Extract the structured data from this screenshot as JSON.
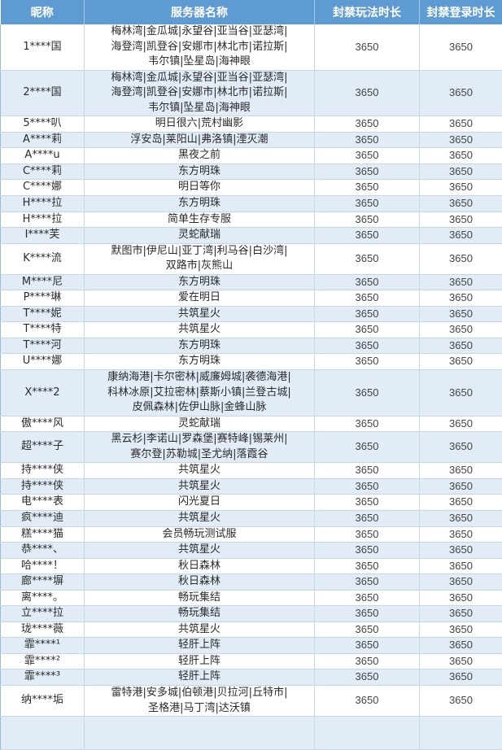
{
  "table": {
    "headers": [
      "昵称",
      "服务器名称",
      "封禁玩法时长",
      "封禁登录时长"
    ],
    "rows": [
      {
        "name": "1****国",
        "server": "梅林湾|金瓜城|永望谷|亚当谷|亚瑟湾|\n海登湾|凯登谷|安娜市|林北市|诺拉斯|\n韦尔镇|坠星岛|海神眼",
        "play_ban": "3650",
        "login_ban": "3650"
      },
      {
        "name": "2****国",
        "server": "梅林湾|金瓜城|永望谷|亚当谷|亚瑟湾|\n海登湾|凯登谷|安娜市|林北市|诺拉斯|\n韦尔镇|坠星岛|海神眼",
        "play_ban": "3650",
        "login_ban": "3650"
      },
      {
        "name": "5****叭",
        "server": "明日很六|荒村幽影",
        "play_ban": "3650",
        "login_ban": "3650"
      },
      {
        "name": "A****莉",
        "server": "浮安岛|莱阳山|弗洛镇|湮灭潮",
        "play_ban": "3650",
        "login_ban": "3650"
      },
      {
        "name": "A****u",
        "server": "黑夜之前",
        "play_ban": "3650",
        "login_ban": "3650"
      },
      {
        "name": "C****莉",
        "server": "东方明珠",
        "play_ban": "3650",
        "login_ban": "3650"
      },
      {
        "name": "C****娜",
        "server": "明日等你",
        "play_ban": "3650",
        "login_ban": "3650"
      },
      {
        "name": "H****拉",
        "server": "东方明珠",
        "play_ban": "3650",
        "login_ban": "3650"
      },
      {
        "name": "H****拉",
        "server": "简单生存专服",
        "play_ban": "3650",
        "login_ban": "3650"
      },
      {
        "name": "I****芙",
        "server": "灵蛇献瑞",
        "play_ban": "3650",
        "login_ban": "3650"
      },
      {
        "name": "K****流",
        "server": "默图市|伊尼山|亚丁湾|利马谷|白沙湾|\n双路市|灰熊山",
        "play_ban": "3650",
        "login_ban": "3650"
      },
      {
        "name": "M****尼",
        "server": "东方明珠",
        "play_ban": "3650",
        "login_ban": "3650"
      },
      {
        "name": "P****琳",
        "server": "爱在明日",
        "play_ban": "3650",
        "login_ban": "3650"
      },
      {
        "name": "T****妮",
        "server": "共筑星火",
        "play_ban": "3650",
        "login_ban": "3650"
      },
      {
        "name": "T****特",
        "server": "共筑星火",
        "play_ban": "3650",
        "login_ban": "3650"
      },
      {
        "name": "T****河",
        "server": "东方明珠",
        "play_ban": "3650",
        "login_ban": "3650"
      },
      {
        "name": "U****娜",
        "server": "东方明珠",
        "play_ban": "3650",
        "login_ban": "3650"
      },
      {
        "name": "X****2",
        "server": "康纳海港|卡尔密林|威廉姆城|袭德海港|\n科林冰原|艾拉密林|蔡斯小镇|兰登古城|\n皮佩森林|佐伊山脉|金蜂山脉",
        "play_ban": "3650",
        "login_ban": "3650"
      },
      {
        "name": "傲****风",
        "server": "灵蛇献瑞",
        "play_ban": "3650",
        "login_ban": "3650"
      },
      {
        "name": "超****子",
        "server": "黑云杉|李诺山|罗森堡|赛特峰|锡莱州|\n赛尔登|苏勒城|圣尤纳|落霞谷",
        "play_ban": "3650",
        "login_ban": "3650"
      },
      {
        "name": "持****侠",
        "server": "共筑星火",
        "play_ban": "3650",
        "login_ban": "3650"
      },
      {
        "name": "持****侠",
        "server": "共筑星火",
        "play_ban": "3650",
        "login_ban": "3650"
      },
      {
        "name": "电****表",
        "server": "闪光夏日",
        "play_ban": "3650",
        "login_ban": "3650"
      },
      {
        "name": "疯****迪",
        "server": "共筑星火",
        "play_ban": "3650",
        "login_ban": "3650"
      },
      {
        "name": "糕****猫",
        "server": "会员畅玩测试服",
        "play_ban": "3650",
        "login_ban": "3650"
      },
      {
        "name": "恭****、",
        "server": "共筑星火",
        "play_ban": "3650",
        "login_ban": "3650"
      },
      {
        "name": "哈****！",
        "server": "秋日森林",
        "play_ban": "3650",
        "login_ban": "3650"
      },
      {
        "name": "廊****塀",
        "server": "秋日森林",
        "play_ban": "3650",
        "login_ban": "3650"
      },
      {
        "name": "离****。",
        "server": "畅玩集结",
        "play_ban": "3650",
        "login_ban": "3650"
      },
      {
        "name": "立****拉",
        "server": "畅玩集结",
        "play_ban": "3650",
        "login_ban": "3650"
      },
      {
        "name": "珑****薇",
        "server": "共筑星火",
        "play_ban": "3650",
        "login_ban": "3650"
      },
      {
        "name": "霏****¹",
        "server": "轻肝上阵",
        "play_ban": "3650",
        "login_ban": "3650"
      },
      {
        "name": "霏****²",
        "server": "轻肝上阵",
        "play_ban": "3650",
        "login_ban": "3650"
      },
      {
        "name": "霏****³",
        "server": "轻肝上阵",
        "play_ban": "3650",
        "login_ban": "3650"
      },
      {
        "name": "纳****垢",
        "server": "雷特港|安多城|伯顿港|贝拉河|丘特市|\n圣格港|马丁湾|达沃镇",
        "play_ban": "3650",
        "login_ban": "3650"
      }
    ]
  }
}
